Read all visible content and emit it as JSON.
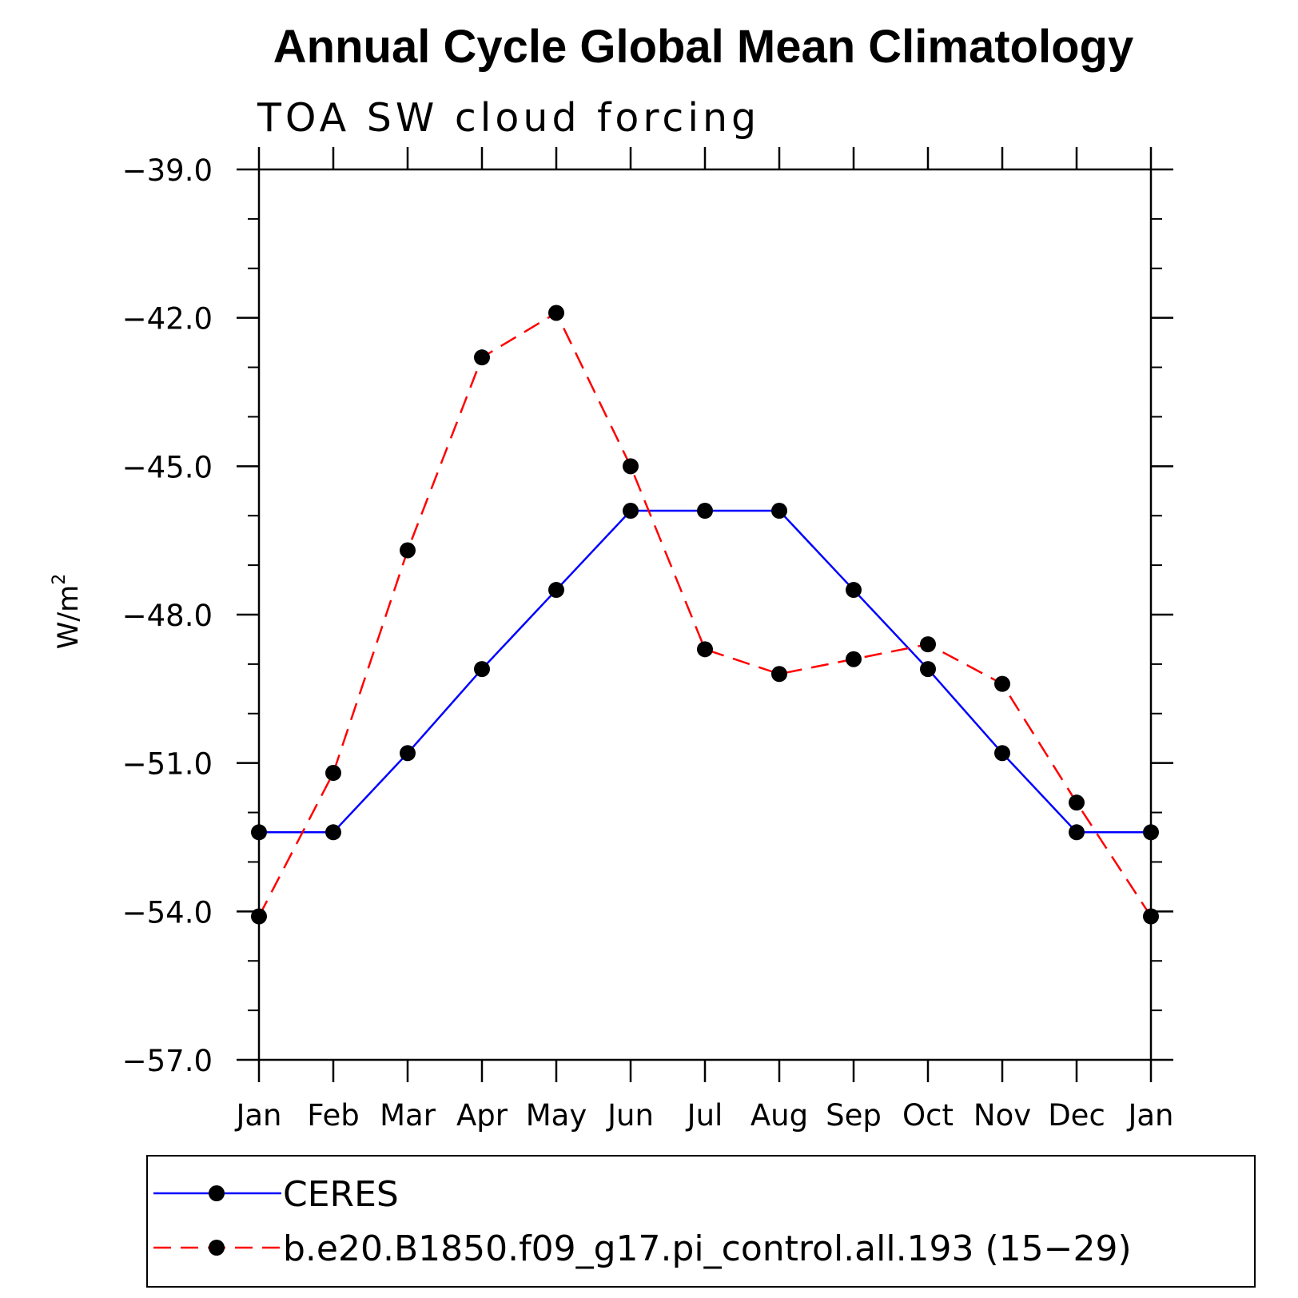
{
  "chart_data": {
    "type": "line",
    "title": "Annual Cycle Global Mean Climatology",
    "subtitle": "TOA SW cloud forcing",
    "ylabel_base": "W/m",
    "ylabel_sup": "2",
    "xlabel": "",
    "categories": [
      "Jan",
      "Feb",
      "Mar",
      "Apr",
      "May",
      "Jun",
      "Jul",
      "Aug",
      "Sep",
      "Oct",
      "Nov",
      "Dec",
      "Jan"
    ],
    "ylim": [
      -57.0,
      -39.0
    ],
    "yticks": [
      -57.0,
      -54.0,
      -51.0,
      -48.0,
      -45.0,
      -42.0,
      -39.0
    ],
    "ytick_labels": [
      "−57.0",
      "−54.0",
      "−51.0",
      "−48.0",
      "−45.0",
      "−42.0",
      "−39.0"
    ],
    "y_minor_step": 1.0,
    "grid": false,
    "legend_position": "bottom",
    "series": [
      {
        "name": "CERES",
        "color": "#0000ff",
        "dash": "solid",
        "marker": "filled-circle",
        "values": [
          -52.4,
          -52.4,
          -50.8,
          -49.1,
          -47.5,
          -45.9,
          -45.9,
          -45.9,
          -47.5,
          -49.1,
          -50.8,
          -52.4,
          -52.4
        ]
      },
      {
        "name": "b.e20.B1850.f09_g17.pi_control.all.193 (15−29)",
        "color": "#ff0000",
        "dash": "dashed",
        "marker": "filled-circle",
        "values": [
          -54.1,
          -51.2,
          -46.7,
          -42.8,
          -41.9,
          -45.0,
          -48.7,
          -49.2,
          -48.9,
          -48.6,
          -49.4,
          -51.8,
          -54.1
        ]
      }
    ]
  }
}
